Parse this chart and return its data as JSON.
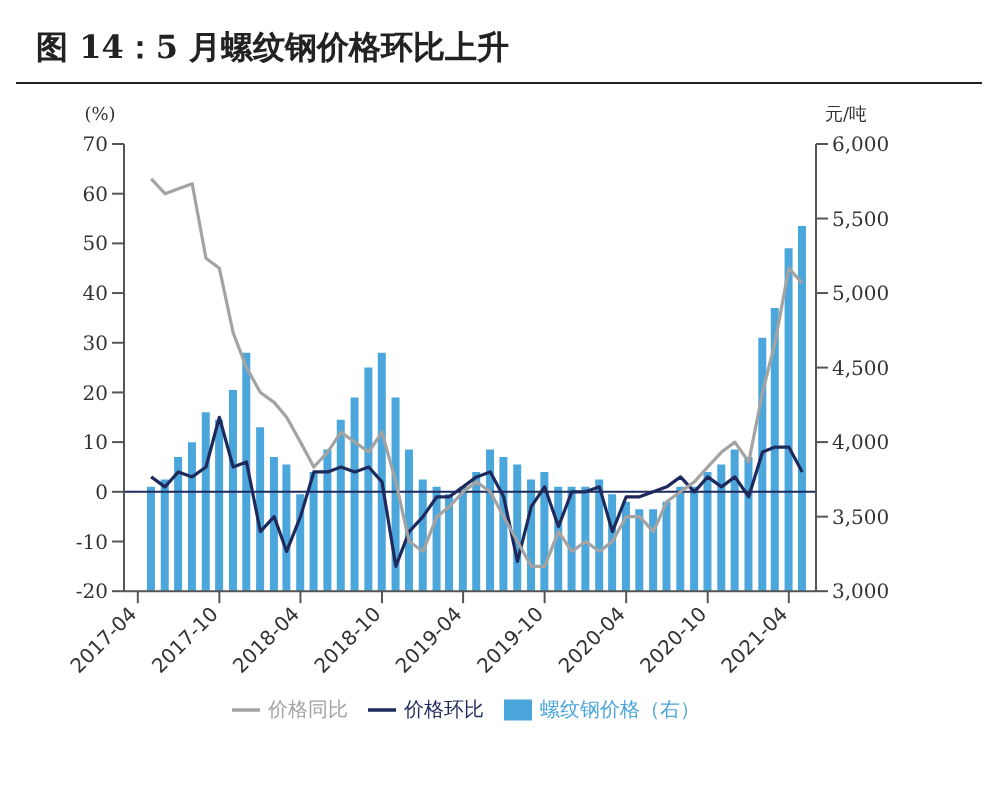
{
  "chart_data": {
    "type": "bar",
    "title": "图 14：5 月螺纹钢价格环比上升",
    "ylabel": "(%)",
    "y2label": "元/吨",
    "x": [
      "2017-05",
      "2017-06",
      "2017-07",
      "2017-08",
      "2017-09",
      "2017-10",
      "2017-11",
      "2017-12",
      "2018-01",
      "2018-02",
      "2018-03",
      "2018-04",
      "2018-05",
      "2018-06",
      "2018-07",
      "2018-08",
      "2018-09",
      "2018-10",
      "2018-11",
      "2018-12",
      "2019-01",
      "2019-02",
      "2019-03",
      "2019-04",
      "2019-05",
      "2019-06",
      "2019-07",
      "2019-08",
      "2019-09",
      "2019-10",
      "2019-11",
      "2019-12",
      "2020-01",
      "2020-02",
      "2020-03",
      "2020-04",
      "2020-05",
      "2020-06",
      "2020-07",
      "2020-08",
      "2020-09",
      "2020-10",
      "2020-11",
      "2020-12",
      "2021-01",
      "2021-02",
      "2021-03",
      "2021-04",
      "2021-05"
    ],
    "series": [
      {
        "name": "螺纹钢价格（右）",
        "axis": "y2",
        "color": "#4ba6dc",
        "values": [
          3700,
          3750,
          3900,
          4000,
          4200,
          4150,
          4350,
          4600,
          4100,
          3900,
          3850,
          3650,
          3800,
          3950,
          4150,
          4300,
          4500,
          4600,
          4300,
          3950,
          3750,
          3700,
          3650,
          3700,
          3800,
          3950,
          3900,
          3850,
          3750,
          3800,
          3700,
          3700,
          3700,
          3750,
          3650,
          3600,
          3550,
          3550,
          3600,
          3700,
          3700,
          3800,
          3850,
          3950,
          3900,
          4700,
          4900,
          5300,
          5450
        ]
      },
      {
        "name": "价格环比",
        "type": "line",
        "color": "#1f2a5c",
        "values": [
          3,
          1,
          4,
          3,
          5,
          15,
          5,
          6,
          -8,
          -5,
          -12,
          -5,
          4,
          4,
          5,
          4,
          5,
          2,
          -15,
          -8,
          -5,
          -1,
          -1,
          1,
          3,
          4,
          -1,
          -14,
          -3,
          1,
          -7,
          0,
          0,
          1,
          -8,
          -1,
          -1,
          0,
          1,
          3,
          0,
          3,
          1,
          3,
          -1,
          8,
          9,
          9,
          4
        ]
      },
      {
        "name": "价格同比",
        "type": "line",
        "color": "#a3a3a3",
        "values": [
          63,
          60,
          61,
          62,
          47,
          45,
          32,
          25,
          20,
          18,
          15,
          10,
          5,
          8,
          12,
          10,
          8,
          12,
          2,
          -10,
          -12,
          -5,
          -3,
          0,
          2,
          0,
          -5,
          -10,
          -15,
          -15,
          -8,
          -12,
          -10,
          -12,
          -10,
          -5,
          -5,
          -8,
          -2,
          0,
          2,
          5,
          8,
          10,
          6,
          20,
          30,
          45,
          42
        ]
      }
    ],
    "xlim": [
      "2017-03",
      "2021-06"
    ],
    "xticks": [
      "2017-04",
      "2017-10",
      "2018-04",
      "2018-10",
      "2019-04",
      "2019-10",
      "2020-04",
      "2020-10",
      "2021-04"
    ],
    "ylim": [
      -20,
      70
    ],
    "yticks": [
      -20,
      -10,
      0,
      10,
      20,
      30,
      40,
      50,
      60,
      70
    ],
    "y2lim": [
      3000,
      6000
    ],
    "y2ticks": [
      {
        "value": 3000,
        "label": "3,000"
      },
      {
        "value": 3500,
        "label": "3,500"
      },
      {
        "value": 4000,
        "label": "4,000"
      },
      {
        "value": 4500,
        "label": "4,500"
      },
      {
        "value": 5000,
        "label": "5,000"
      },
      {
        "value": 5500,
        "label": "5,500"
      },
      {
        "value": 6000,
        "label": "6,000"
      }
    ],
    "ref_lines": [
      {
        "axis": "y",
        "value": 0,
        "color": "#1f2a5c"
      }
    ],
    "grid": false,
    "legend": "bottom",
    "marker": "none",
    "line_style": "solid"
  }
}
